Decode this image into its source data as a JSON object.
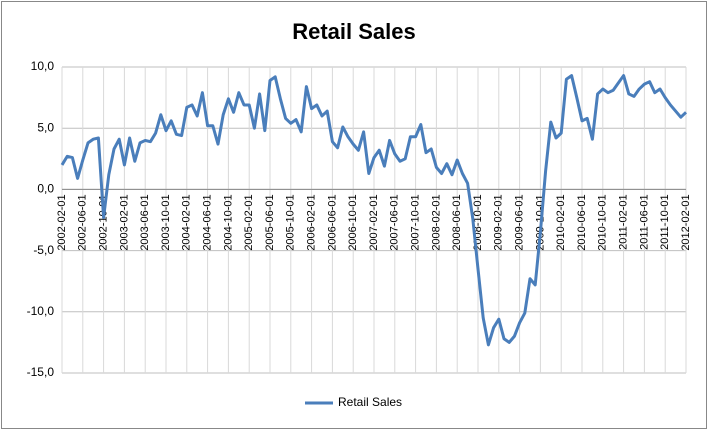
{
  "chart_data": {
    "type": "line",
    "title": "Retail Sales",
    "categories": [
      "2002-02-01",
      null,
      null,
      null,
      "2002-06-01",
      null,
      null,
      null,
      "2002-10-01",
      null,
      null,
      null,
      "2003-02-01",
      null,
      null,
      null,
      "2003-06-01",
      null,
      null,
      null,
      "2003-10-01",
      null,
      null,
      null,
      "2004-02-01",
      null,
      null,
      null,
      "2004-06-01",
      null,
      null,
      null,
      "2004-10-01",
      null,
      null,
      null,
      "2005-02-01",
      null,
      null,
      null,
      "2005-06-01",
      null,
      null,
      null,
      "2005-10-01",
      null,
      null,
      null,
      "2006-02-01",
      null,
      null,
      null,
      "2006-06-01",
      null,
      null,
      null,
      "2006-10-01",
      null,
      null,
      null,
      "2007-02-01",
      null,
      null,
      null,
      "2007-06-01",
      null,
      null,
      null,
      "2007-10-01",
      null,
      null,
      null,
      "2008-02-01",
      null,
      null,
      null,
      "2008-06-01",
      null,
      null,
      null,
      "2008-10-01",
      null,
      null,
      null,
      "2009-02-01",
      null,
      null,
      null,
      "2009-06-01",
      null,
      null,
      null,
      "2009-10-01",
      null,
      null,
      null,
      "2010-02-01",
      null,
      null,
      null,
      "2010-06-01",
      null,
      null,
      null,
      "2010-10-01",
      null,
      null,
      null,
      "2011-02-01",
      null,
      null,
      null,
      "2011-06-01",
      null,
      null,
      null,
      "2011-10-01",
      null,
      null,
      null,
      "2012-02-01"
    ],
    "series": [
      {
        "name": "Retail Sales",
        "color": "#4a7ebb",
        "values": [
          2.0,
          2.7,
          2.6,
          0.9,
          2.4,
          3.8,
          4.1,
          4.2,
          -2.3,
          1.2,
          3.3,
          4.1,
          2.0,
          4.2,
          2.3,
          3.8,
          4.0,
          3.9,
          4.6,
          6.1,
          4.8,
          5.6,
          4.5,
          4.4,
          6.7,
          6.9,
          6.0,
          7.9,
          5.2,
          5.2,
          3.7,
          6.1,
          7.4,
          6.3,
          7.9,
          6.9,
          6.9,
          5.0,
          7.8,
          4.8,
          8.9,
          9.2,
          7.4,
          5.8,
          5.4,
          5.7,
          4.7,
          8.4,
          6.6,
          6.9,
          6.0,
          6.4,
          3.9,
          3.4,
          5.1,
          4.3,
          3.7,
          3.2,
          4.7,
          1.3,
          2.6,
          3.2,
          1.9,
          4.0,
          2.9,
          2.3,
          2.5,
          4.3,
          4.3,
          5.3,
          3.0,
          3.3,
          1.8,
          1.3,
          2.1,
          1.2,
          2.4,
          1.3,
          0.5,
          -2.4,
          -6.5,
          -10.5,
          -12.7,
          -11.3,
          -10.6,
          -12.2,
          -12.5,
          -12.0,
          -10.9,
          -10.1,
          -7.3,
          -7.8,
          -3.5,
          1.5,
          5.5,
          4.2,
          4.6,
          9.0,
          9.3,
          7.5,
          5.6,
          5.8,
          4.1,
          7.8,
          8.2,
          7.9,
          8.1,
          8.7,
          9.3,
          7.8,
          7.6,
          8.2,
          8.6,
          8.8,
          7.9,
          8.2,
          7.5,
          6.9,
          6.4,
          5.9,
          6.3
        ]
      }
    ],
    "ylim": [
      -15,
      10
    ],
    "yticks": [
      {
        "value": -15,
        "label": "-15,0"
      },
      {
        "value": -10,
        "label": "-10,0"
      },
      {
        "value": -5,
        "label": "-5,0"
      },
      {
        "value": 0,
        "label": "0,0"
      },
      {
        "value": 5,
        "label": "5,0"
      },
      {
        "value": 10,
        "label": "10,0"
      }
    ],
    "grid": true,
    "legend": "bottom"
  }
}
